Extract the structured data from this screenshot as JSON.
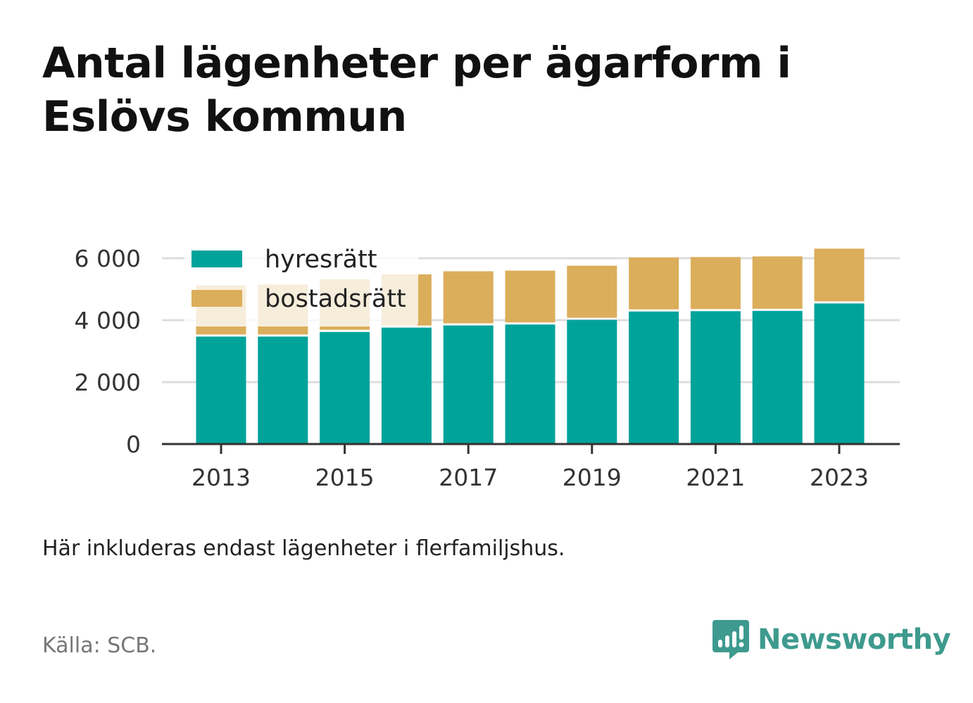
{
  "title": "Antal lägenheter per ägarform i Eslövs kommun",
  "note": "Här inkluderas endast lägenheter i flerfamiljshus.",
  "source": "Källa: SCB.",
  "brand": {
    "name": "Newsworthy",
    "color": "#3e9a8e",
    "icon": "bar-chart-speech-bubble-icon"
  },
  "chart_data": {
    "type": "bar",
    "stacked": true,
    "categories": [
      "2013",
      "2014",
      "2015",
      "2016",
      "2017",
      "2018",
      "2019",
      "2020",
      "2021",
      "2022",
      "2023"
    ],
    "x_tick_labels": [
      "2013",
      "2015",
      "2017",
      "2019",
      "2021",
      "2023"
    ],
    "y_tick_values": [
      0,
      2000,
      4000,
      6000
    ],
    "y_tick_labels": [
      "0",
      "2 000",
      "4 000",
      "6 000"
    ],
    "ylim": [
      0,
      6400
    ],
    "grid": true,
    "legend_position": "top-left",
    "series": [
      {
        "name": "hyresrätt",
        "color": "#00a39a",
        "values": [
          3470,
          3470,
          3620,
          3760,
          3830,
          3860,
          4010,
          4280,
          4290,
          4300,
          4540
        ]
      },
      {
        "name": "bostadsrätt",
        "color": "#dbae5b",
        "values": [
          1650,
          1680,
          1700,
          1720,
          1750,
          1740,
          1750,
          1750,
          1750,
          1760,
          1770
        ]
      }
    ]
  }
}
